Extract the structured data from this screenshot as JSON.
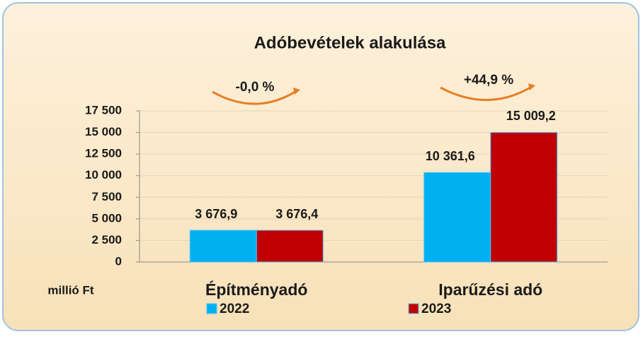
{
  "chart_data": {
    "type": "bar",
    "title": "Adóbevételek alakulása",
    "y_axis_label": "millió Ft",
    "categories": [
      "Építményadó",
      "Iparűzési adó"
    ],
    "series": [
      {
        "name": "2022",
        "color": "#00b0f0",
        "values": [
          3676.9,
          10361.6
        ],
        "value_labels": [
          "3 676,9",
          "10 361,6"
        ]
      },
      {
        "name": "2023",
        "color": "#c00000",
        "values": [
          3676.4,
          15009.2
        ],
        "value_labels": [
          "3 676,4",
          "15 009,2"
        ]
      }
    ],
    "annotations": [
      "-0,0 %",
      "+44,9 %"
    ],
    "ylim": [
      0,
      17500
    ],
    "yticks": [
      0,
      {
        "value": 2500,
        "label": "2 500"
      },
      {
        "value": 5000,
        "label": "5 000"
      },
      {
        "value": 7500,
        "label": "7 500"
      },
      {
        "value": 10000,
        "label": "10 000"
      },
      {
        "value": 12500,
        "label": "12 500"
      },
      {
        "value": 15000,
        "label": "15 000"
      },
      {
        "value": 17500,
        "label": "17 500"
      }
    ],
    "grid": true,
    "legend": "bottom"
  }
}
